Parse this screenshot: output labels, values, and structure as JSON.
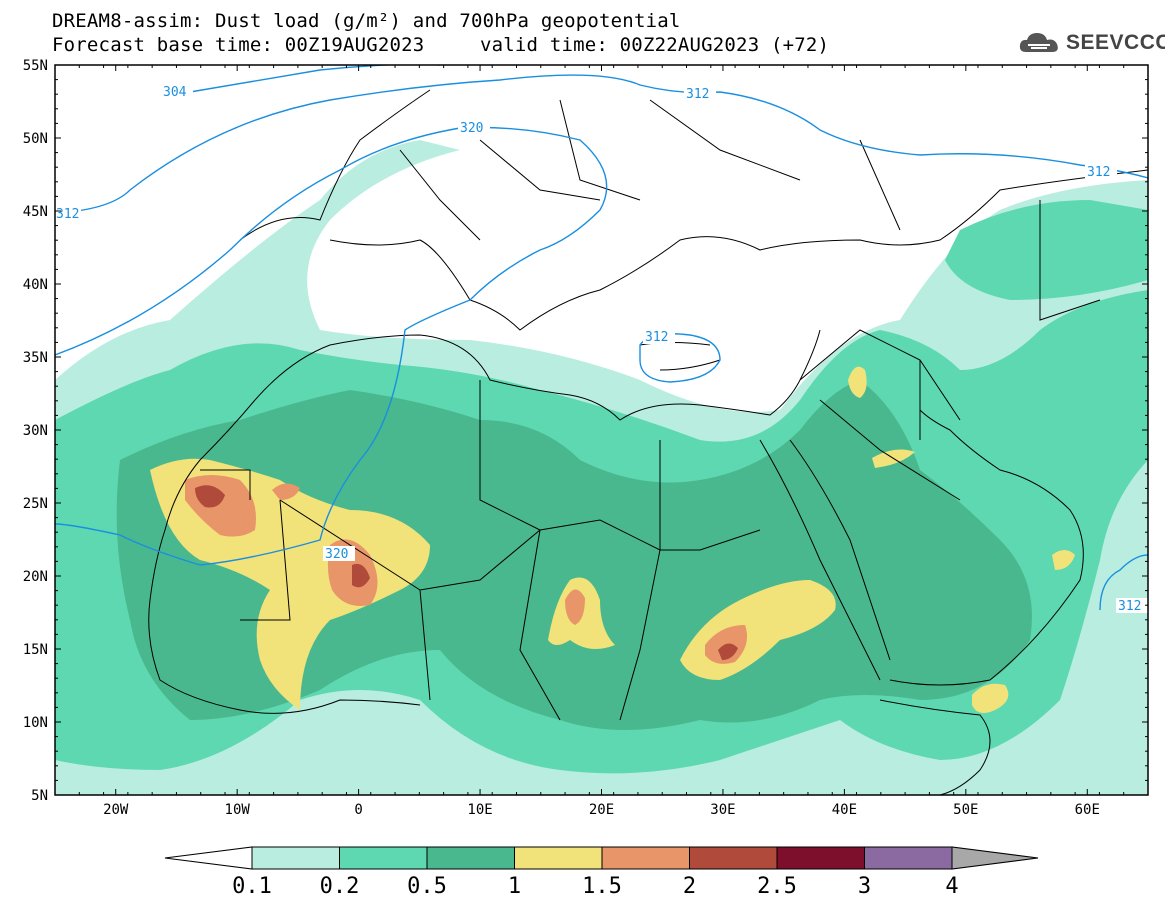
{
  "title": {
    "line1": "DREAM8-assim: Dust load (g/m²) and 700hPa geopotential",
    "line2_left": "Forecast base time: 00Z19AUG2023",
    "line2_right": "valid time: 00Z22AUG2023 (+72)"
  },
  "logo": {
    "text": "SEEVCCC",
    "icon": "cloud-icon"
  },
  "map": {
    "lon_range": [
      -25,
      65
    ],
    "lat_range": [
      5,
      55
    ],
    "lat_ticks": [
      "5N",
      "10N",
      "15N",
      "20N",
      "25N",
      "30N",
      "35N",
      "40N",
      "45N",
      "50N",
      "55N"
    ],
    "lon_ticks": [
      "20W",
      "10W",
      "0",
      "10E",
      "20E",
      "30E",
      "40E",
      "50E",
      "60E"
    ],
    "contour_color": "#1a8fe0",
    "contour_labels": [
      "304",
      "312",
      "320",
      "312",
      "312",
      "320",
      "312",
      "312"
    ]
  },
  "colorbar": {
    "labels": [
      "0.1",
      "0.2",
      "0.5",
      "1",
      "1.5",
      "2",
      "2.5",
      "3",
      "4"
    ],
    "colors": [
      "#b8ede0",
      "#5ed8b0",
      "#4ab88e",
      "#f2e27a",
      "#e9956a",
      "#b04a3a",
      "#7e0f2c",
      "#8a6aa0"
    ],
    "under_color": "#ffffff",
    "over_color": "#a8a8a8"
  }
}
